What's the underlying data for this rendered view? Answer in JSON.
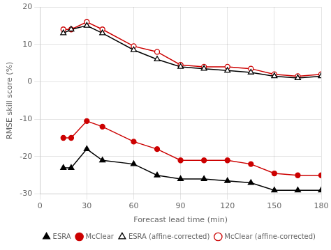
{
  "chart_data": {
    "type": "line",
    "xlabel": "Forecast lead time (min)",
    "ylabel": "RMSE skill score (%)",
    "x": [
      15,
      20,
      30,
      40,
      60,
      75,
      90,
      105,
      120,
      135,
      150,
      165,
      180
    ],
    "series": [
      {
        "name": "ESRA",
        "color": "#000000",
        "marker": "triangle",
        "line_style": "solid",
        "values": [
          -23,
          -23,
          -18,
          -21,
          -22,
          -25,
          -26,
          -26,
          -26.5,
          -27,
          -29,
          -29,
          -29
        ]
      },
      {
        "name": "McClear",
        "color": "#cc0000",
        "marker": "circle",
        "line_style": "solid",
        "values": [
          -15,
          -15,
          -10.5,
          -12,
          -16,
          -18,
          -21,
          -21,
          -21,
          -22,
          -24.5,
          -25,
          -25
        ]
      },
      {
        "name": "ESRA (affine-corrected)",
        "color": "#000000",
        "marker": "open triangle",
        "line_style": "solid",
        "values": [
          13,
          14,
          15,
          13,
          8.5,
          6,
          4,
          3.5,
          3,
          2.5,
          1.5,
          1,
          1.5
        ]
      },
      {
        "name": "McClear (affine-corrected)",
        "color": "#cc0000",
        "marker": "open circle",
        "line_style": "solid",
        "values": [
          14,
          14,
          16,
          14,
          9.5,
          8,
          4.5,
          4,
          4,
          3.5,
          2,
          1.5,
          2
        ]
      }
    ],
    "xlim": [
      0,
      180
    ],
    "ylim": [
      -30,
      20
    ],
    "xticks": [
      0,
      30,
      60,
      90,
      120,
      150,
      180
    ],
    "yticks": [
      -30,
      -20,
      -10,
      0,
      10,
      20
    ],
    "grid": true,
    "legend": "lower right"
  }
}
